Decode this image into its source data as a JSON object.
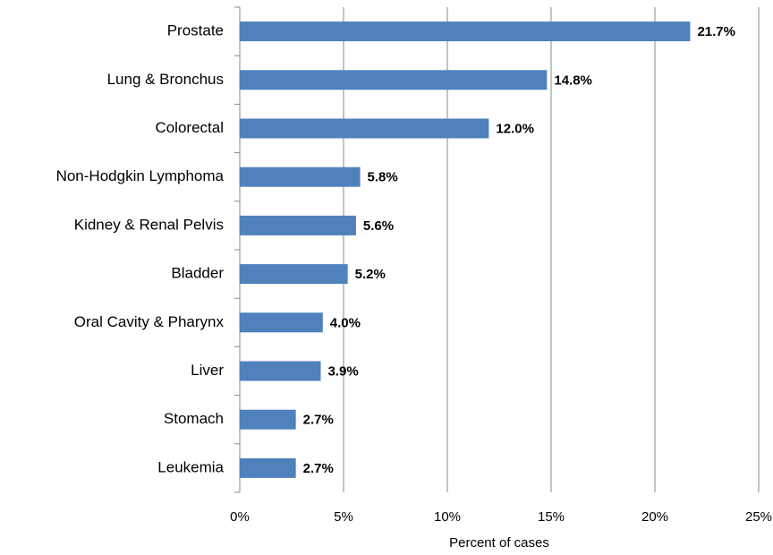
{
  "chart_data": {
    "type": "bar",
    "orientation": "horizontal",
    "x_label": "Percent of cases",
    "categories": [
      "Prostate",
      "Lung & Bronchus",
      "Colorectal",
      "Non-Hodgkin Lymphoma",
      "Kidney & Renal Pelvis",
      "Bladder",
      "Oral Cavity & Pharynx",
      "Liver",
      "Stomach",
      "Leukemia"
    ],
    "values": [
      21.7,
      14.8,
      12.0,
      5.8,
      5.6,
      5.2,
      4.0,
      3.9,
      2.7,
      2.7
    ],
    "value_labels": [
      "21.7%",
      "14.8%",
      "12.0%",
      "5.8%",
      "5.6%",
      "5.2%",
      "4.0%",
      "3.9%",
      "2.7%",
      "2.7%"
    ],
    "color": "#4f81bd",
    "xlim": [
      0,
      25
    ],
    "xticks": [
      {
        "value": 0,
        "label": "0%"
      },
      {
        "value": 5,
        "label": "5%"
      },
      {
        "value": 10,
        "label": "10%"
      },
      {
        "value": 15,
        "label": "15%"
      },
      {
        "value": 20,
        "label": "20%"
      },
      {
        "value": 25,
        "label": "25%"
      }
    ],
    "grid": true
  }
}
